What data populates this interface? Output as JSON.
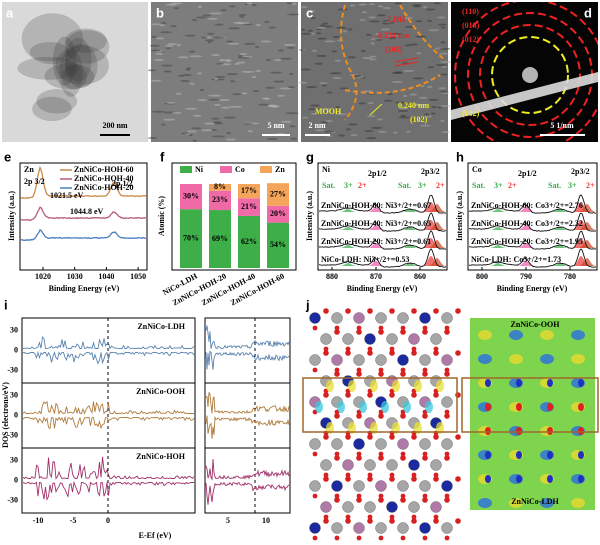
{
  "panel_labels": [
    "a",
    "b",
    "c",
    "d",
    "e",
    "f",
    "g",
    "h",
    "i",
    "j"
  ],
  "a": {
    "scale_bar": "200 nm"
  },
  "b": {
    "scale_bar": "5 nm"
  },
  "c": {
    "phase_1": "LDH",
    "spacing_1": "0.234 nm",
    "plane_1": "(105)",
    "phase_2": "MOOH",
    "spacing_2": "0.240 nm",
    "plane_2": "(102)",
    "scale_bar": "2 nm"
  },
  "d": {
    "rings": [
      "(110)",
      "(018)",
      "(012)"
    ],
    "inner_ring": "(102)",
    "scale_bar": "5 1/nm"
  },
  "e": {
    "element": "Zn",
    "peak_1": "2p 3/2",
    "peak_2": "2p 1/2",
    "energy_1": "1021.5 eV",
    "energy_2": "1044.8 eV",
    "legend": [
      "ZnNiCo-HOH-60",
      "ZnNiCo-HOH-40",
      "ZnNiCo-HOH-20"
    ],
    "y_label": "Intensity (a.u.)",
    "x_label": "Binding Energy (eV)",
    "xticks": [
      1020,
      1030,
      1040,
      1050
    ]
  },
  "chart_data": {
    "type": "bar",
    "stacked": true,
    "y_label": "Atomic (%)",
    "categories": [
      "NiCo-LDH",
      "ZnNiCo-HOH-20",
      "ZnNiCo-HOH-40",
      "ZnNiCo-HOH-60"
    ],
    "ylim": [
      0,
      100
    ],
    "series": [
      {
        "name": "Ni",
        "color": "#3dae48",
        "values": [
          70,
          69,
          62,
          54
        ],
        "value_labels": [
          "70%",
          "69%",
          "62%",
          "54%"
        ]
      },
      {
        "name": "Co",
        "color": "#f06aa8",
        "values": [
          30,
          23,
          21,
          20
        ],
        "value_labels": [
          "30%",
          "23%",
          "21%",
          "20%"
        ]
      },
      {
        "name": "Zn",
        "color": "#f5a55a",
        "values": [
          0,
          8,
          17,
          27
        ],
        "value_labels": [
          null,
          "8%",
          "17%",
          "27%"
        ]
      }
    ]
  },
  "g": {
    "element": "Ni",
    "peak_1": "2p1/2",
    "peak_2": "2p3/2",
    "sat": "Sat.",
    "ox_3": "3+",
    "ox_2": "2+",
    "curves": [
      "ZnNiCo-HOH-60: Ni3+/2+=0.67",
      "ZnNiCo-HOH-40: Ni3+/2+=0.65",
      "ZnNiCo-HOH-20: Ni3+/2+=0.61",
      "NiCo-LDH: Ni3+/2+=0.53"
    ],
    "y_label": "Intensity (a.u.)",
    "x_label": "Binding Energy (eV)",
    "xticks": [
      880,
      870,
      860
    ]
  },
  "h": {
    "element": "Co",
    "peak_1": "2p1/2",
    "peak_2": "2p3/2",
    "sat": "Sat.",
    "ox_3": "3+",
    "ox_2": "2+",
    "curves": [
      "ZnNiCo-HOH-60: Co3+/2+=2.76",
      "ZnNiCo-HOH-40: Co3+/2+=2.32",
      "ZnNiCo-HOH-20: Co3+/2+=1.95",
      "NiCo-LDH: Co3+/2+=1.73"
    ],
    "y_label": "Intensity (a.u.)",
    "x_label": "Binding Energy (eV)",
    "xticks": [
      800,
      790,
      780
    ]
  },
  "i": {
    "panels": [
      "ZnNiCo-LDH",
      "ZnNiCo-OOH",
      "ZnNiCo-HOH"
    ],
    "yticks": [
      30,
      0,
      -30
    ],
    "xticks": [
      -10,
      -5,
      0,
      5,
      10
    ],
    "y_label": "DOS (electrons/eV)",
    "x_label": "E-Ef (eV)"
  },
  "j": {
    "top_label": "ZnNiCo-OOH",
    "bottom_label": "ZnNiCo-LDH"
  }
}
